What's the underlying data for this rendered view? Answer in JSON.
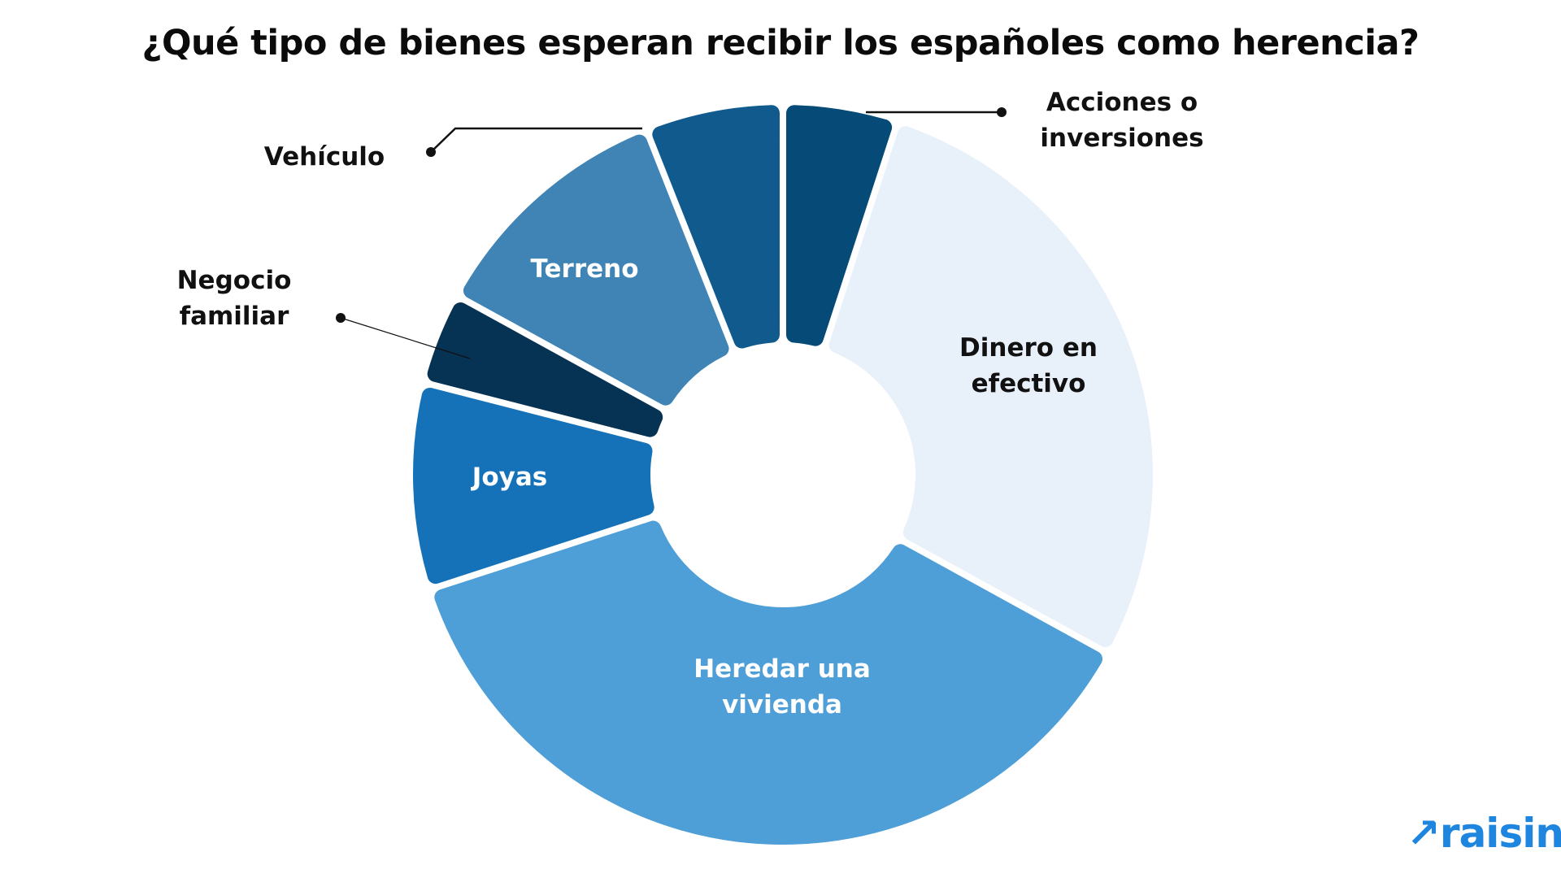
{
  "chart_data": {
    "type": "pie",
    "subtype": "donut",
    "title": "¿Qué tipo de bienes esperan recibir los españoles como herencia?",
    "categories": [
      "Acciones o inversiones",
      "Dinero en efectivo",
      "Heredar una vivienda",
      "Joyas",
      "Negocio familiar",
      "Terreno",
      "Vehículo"
    ],
    "label_lines": [
      [
        "Acciones o",
        "inversiones"
      ],
      [
        "Dinero en",
        "efectivo"
      ],
      [
        "Heredar una",
        "vivienda"
      ],
      [
        "Joyas"
      ],
      [
        "Negocio",
        "familiar"
      ],
      [
        "Terreno"
      ],
      [
        "Vehículo"
      ]
    ],
    "values": [
      5,
      28,
      37,
      9,
      4,
      11,
      6
    ],
    "unit": "%",
    "colors": [
      "#064a78",
      "#e8f0fa",
      "#4e9ed7",
      "#1672b8",
      "#063253",
      "#3f84b5",
      "#105a8e"
    ],
    "label_colors": [
      "#111111",
      "#111111",
      "#ffffff",
      "#ffffff",
      "#111111",
      "#ffffff",
      "#111111"
    ],
    "legend": "none",
    "start": "top, clockwise"
  },
  "brand": {
    "logo_text": "raisin",
    "color": "#1f86e0"
  }
}
